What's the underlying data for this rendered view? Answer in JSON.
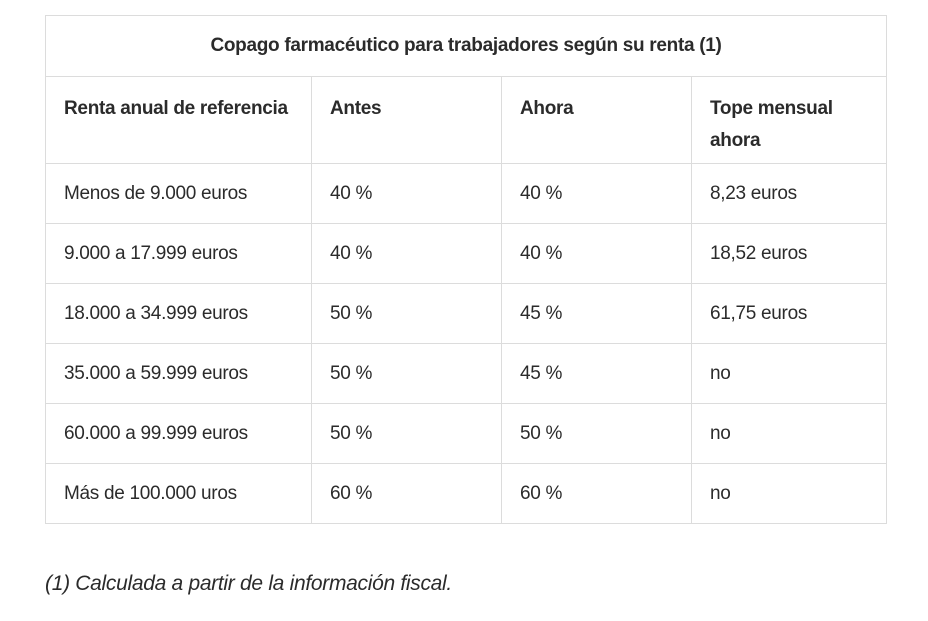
{
  "table": {
    "title": "Copago farmacéutico para trabajadores según su renta (1)",
    "headers": [
      "Renta anual de referencia",
      "Antes",
      "Ahora",
      "Tope mensual ahora"
    ],
    "rows": [
      [
        "Menos de 9.000 euros",
        "40 %",
        "40 %",
        "8,23 euros"
      ],
      [
        "9.000 a 17.999 euros",
        "40 %",
        "40 %",
        "18,52 euros"
      ],
      [
        "18.000 a 34.999 euros",
        "50 %",
        "45 %",
        "61,75 euros"
      ],
      [
        "35.000 a 59.999 euros",
        "50 %",
        "45 %",
        "no"
      ],
      [
        "60.000 a 99.999 euros",
        "50 %",
        "50 %",
        "no"
      ],
      [
        "Más de 100.000  uros",
        "60 %",
        "60 %",
        "no"
      ]
    ]
  },
  "footnote": "(1) Calculada a partir de la información fiscal."
}
